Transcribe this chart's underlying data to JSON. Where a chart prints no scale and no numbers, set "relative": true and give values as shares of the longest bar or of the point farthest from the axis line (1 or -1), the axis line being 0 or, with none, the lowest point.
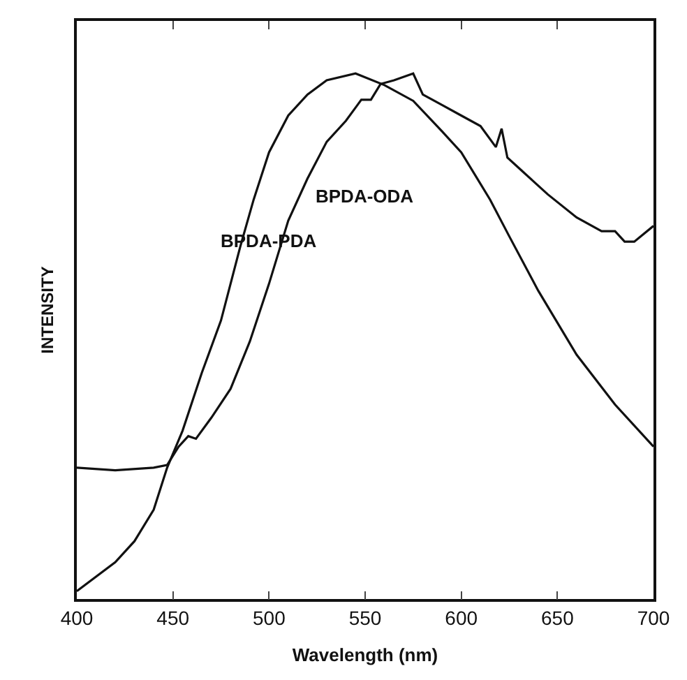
{
  "chart_data": {
    "type": "line",
    "relative": true,
    "xlabel": "Wavelength (nm)",
    "ylabel": "INTENSITY",
    "xlim": [
      400,
      700
    ],
    "xticks": [
      400,
      450,
      500,
      550,
      600,
      650,
      700
    ],
    "legend": false,
    "line_style": "solid",
    "series": [
      {
        "name": "BPDA-PDA",
        "color": "#111111",
        "x": [
          400,
          420,
          430,
          440,
          447,
          455,
          465,
          475,
          485,
          492,
          500,
          510,
          520,
          530,
          545,
          560,
          575,
          590,
          600,
          615,
          625,
          640,
          660,
          680,
          700
        ],
        "values": [
          0.015,
          0.07,
          0.11,
          0.17,
          0.25,
          0.32,
          0.43,
          0.53,
          0.67,
          0.76,
          0.85,
          0.92,
          0.96,
          0.987,
          1.0,
          0.978,
          0.948,
          0.89,
          0.85,
          0.76,
          0.69,
          0.587,
          0.465,
          0.37,
          0.29
        ]
      },
      {
        "name": "BPDA-ODA",
        "color": "#111111",
        "x": [
          400,
          420,
          440,
          447,
          453,
          458,
          462,
          470,
          480,
          490,
          500,
          510,
          520,
          530,
          540,
          548,
          553,
          558,
          565,
          575,
          580,
          590,
          600,
          610,
          618,
          621,
          624,
          630,
          645,
          660,
          673,
          680,
          685,
          690,
          700
        ],
        "values": [
          0.25,
          0.245,
          0.25,
          0.255,
          0.29,
          0.31,
          0.305,
          0.345,
          0.4,
          0.49,
          0.6,
          0.72,
          0.8,
          0.87,
          0.91,
          0.95,
          0.95,
          0.98,
          0.987,
          1.0,
          0.96,
          0.94,
          0.92,
          0.9,
          0.86,
          0.895,
          0.84,
          0.82,
          0.77,
          0.726,
          0.7,
          0.7,
          0.68,
          0.68,
          0.71
        ]
      }
    ]
  }
}
